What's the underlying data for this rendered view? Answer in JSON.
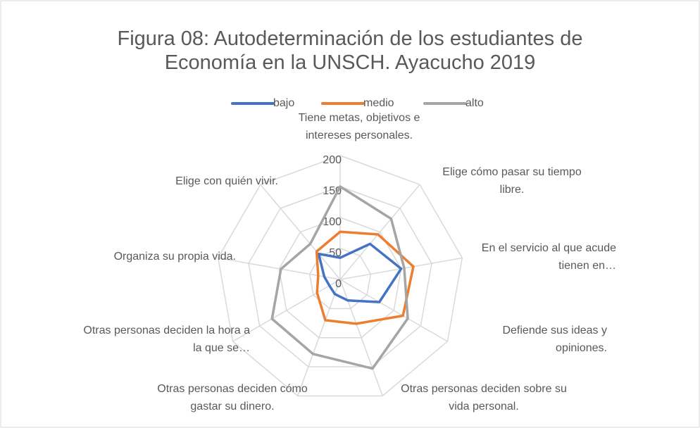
{
  "chart_data": {
    "type": "radar",
    "title": "Figura 08: Autodeterminación de los estudiantes de Economía en la UNSCH. Ayacucho 2019",
    "categories": [
      "Tiene metas, objetivos e intereses personales.",
      "Elige cómo pasar su tiempo libre.",
      "En el servicio al que acude tienen en…",
      "Defiende sus ideas y opiniones.",
      "Otras personas deciden sobre su vida personal.",
      "Otras personas deciden cómo gastar su dinero.",
      "Otras personas deciden la hora a la que se…",
      "Organiza su propia vida.",
      "Elige con quién vivir."
    ],
    "series": [
      {
        "name": "bajo",
        "color": "#4472c4",
        "values": [
          35,
          75,
          100,
          73,
          36,
          25,
          20,
          26,
          54
        ]
      },
      {
        "name": "medio",
        "color": "#ed7d31",
        "values": [
          77,
          95,
          120,
          117,
          76,
          70,
          43,
          36,
          59
        ]
      },
      {
        "name": "alto",
        "color": "#a5a5a5",
        "values": [
          150,
          128,
          105,
          126,
          153,
          128,
          127,
          97,
          75
        ]
      }
    ],
    "ylim": [
      0,
      200
    ],
    "yticks": [
      0,
      50,
      100,
      150,
      200
    ],
    "grid": true,
    "legend": "top"
  }
}
